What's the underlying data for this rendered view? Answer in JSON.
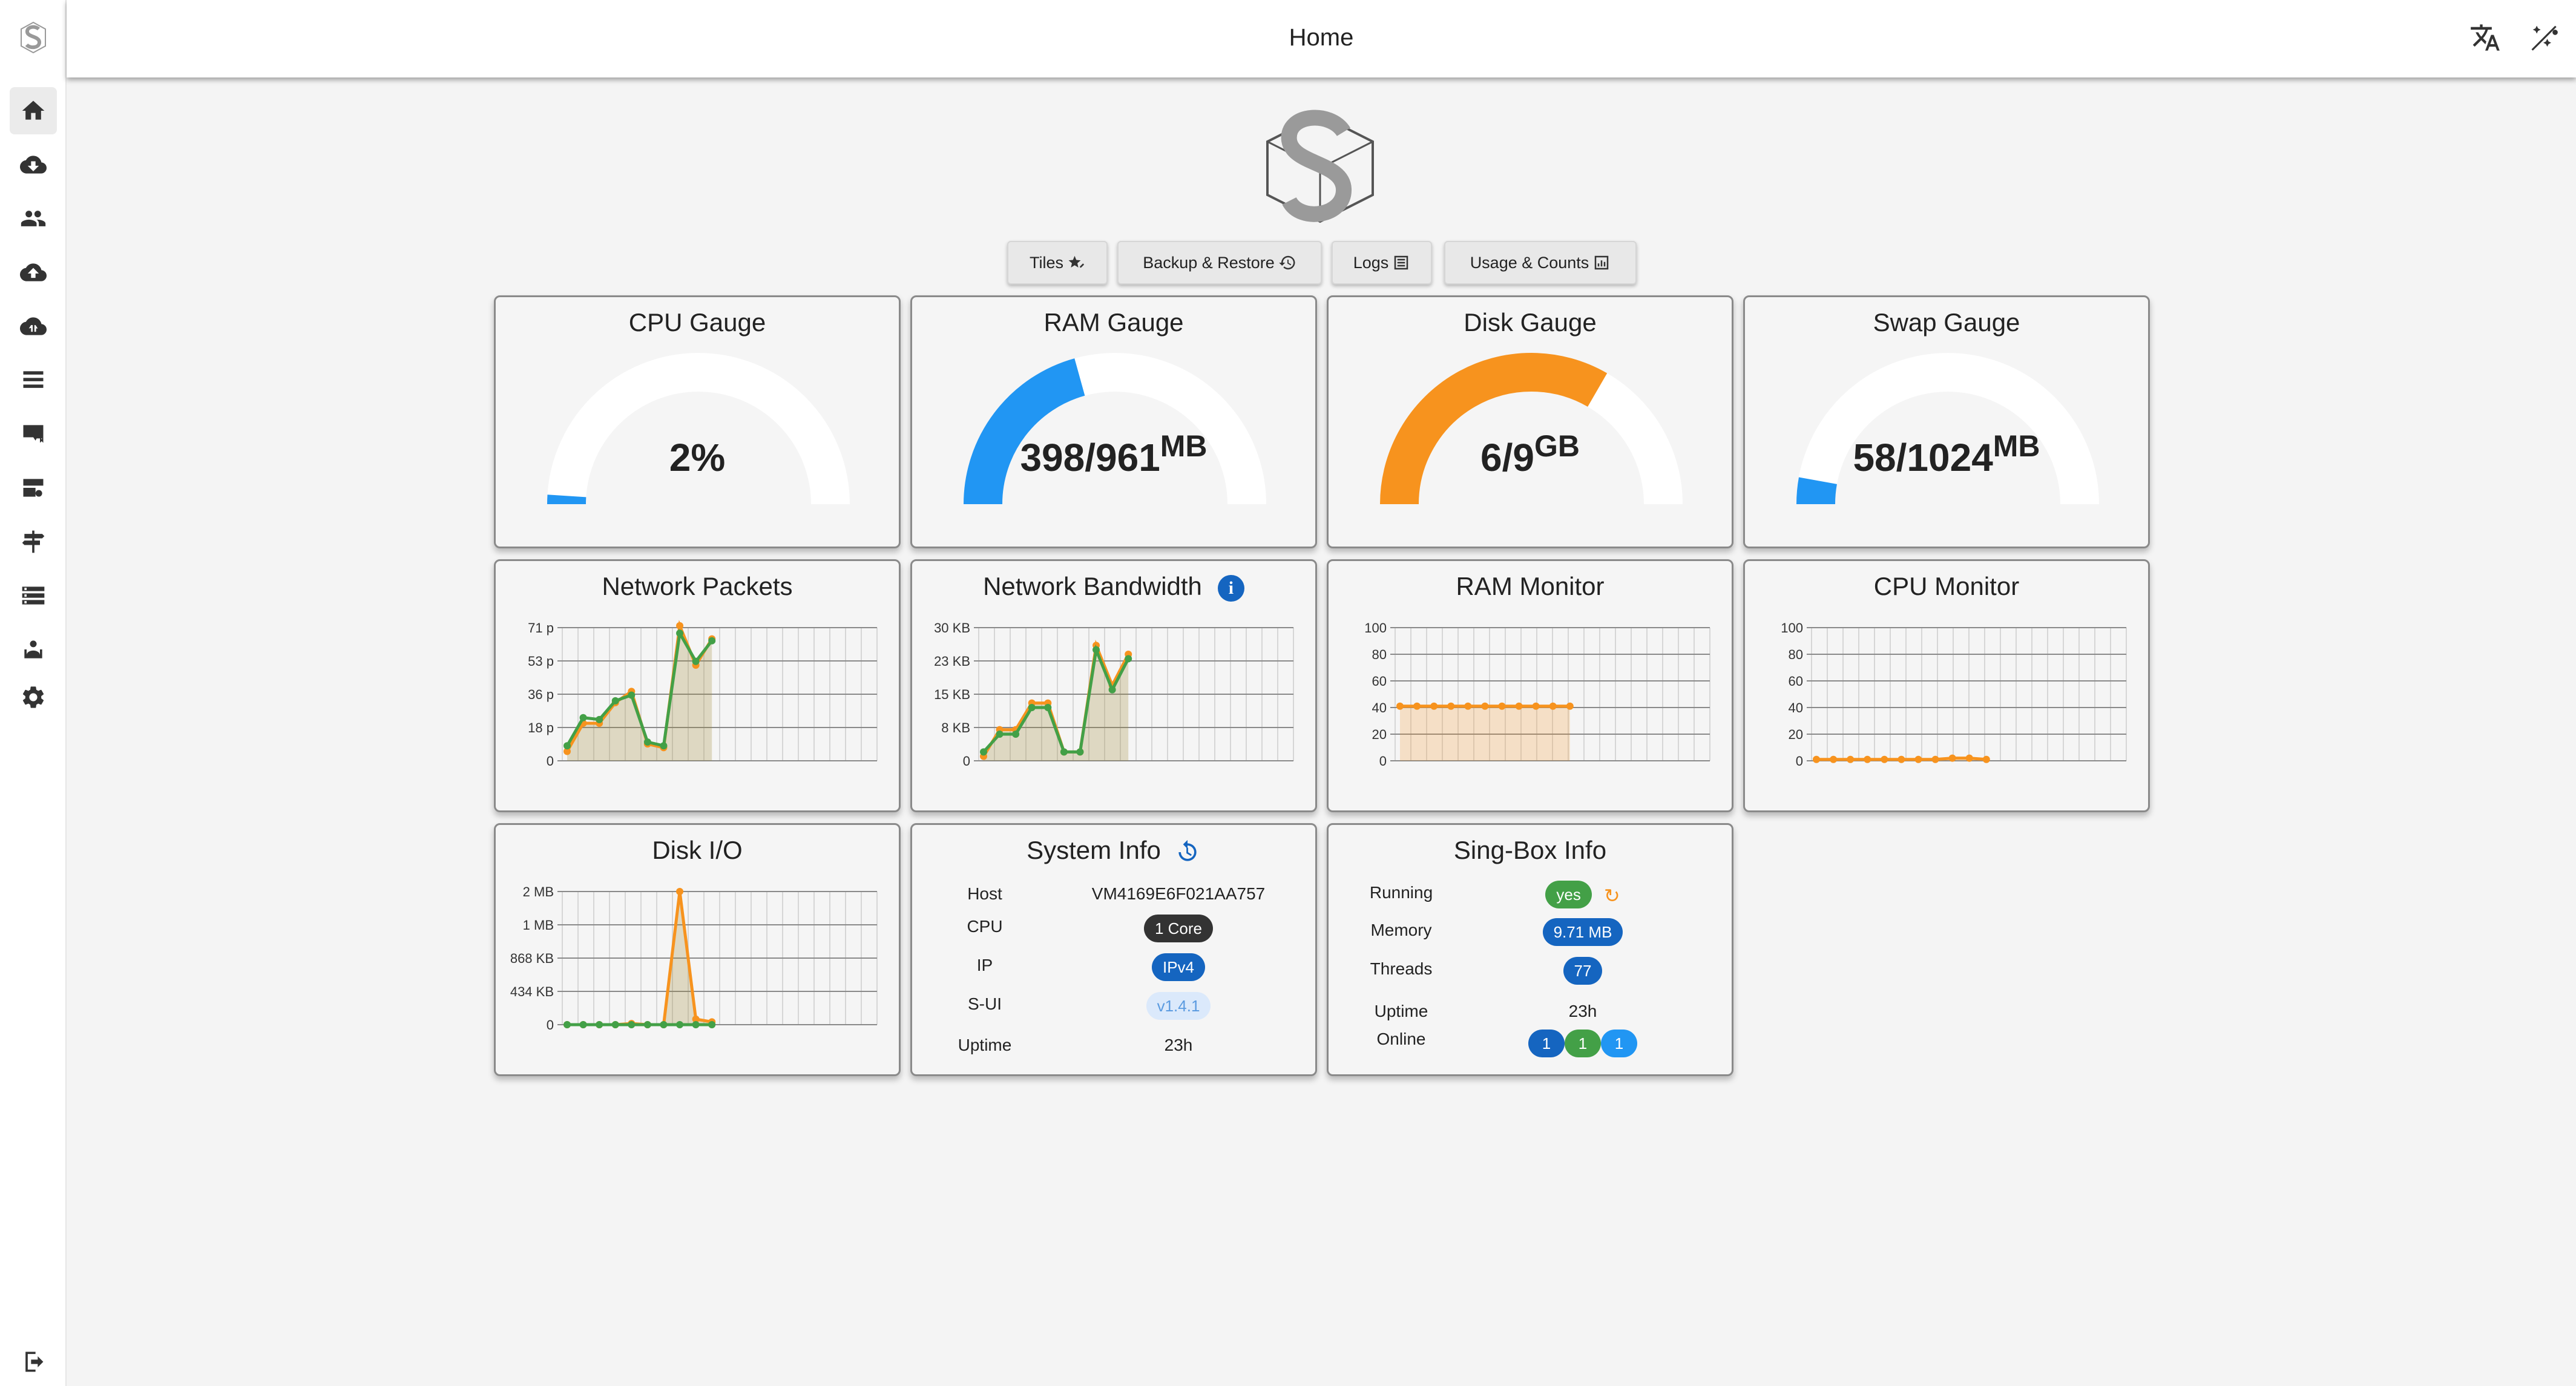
{
  "header": {
    "title": "Home"
  },
  "tabs": [
    {
      "label": "Tiles",
      "icon": "star-edit-icon"
    },
    {
      "label": "Backup & Restore",
      "icon": "history-icon"
    },
    {
      "label": "Logs",
      "icon": "list-icon"
    },
    {
      "label": "Usage & Counts",
      "icon": "bar-chart-icon"
    }
  ],
  "sidebar": {
    "items": [
      "home-icon",
      "inbound-icon",
      "clients-icon",
      "outbound-icon",
      "endpoints-icon",
      "services-icon",
      "tls-icon",
      "dns-icon",
      "rules-icon",
      "basics-icon",
      "admins-icon",
      "settings-icon"
    ],
    "logout": "logout-icon"
  },
  "gauges": [
    {
      "title": "CPU Gauge",
      "value": "2%",
      "unit": "",
      "fraction": 0.02,
      "color": "#2196f3"
    },
    {
      "title": "RAM Gauge",
      "value": "398/961",
      "unit": "MB",
      "fraction": 0.414,
      "color": "#2196f3"
    },
    {
      "title": "Disk Gauge",
      "value": "6/9",
      "unit": "GB",
      "fraction": 0.667,
      "color": "#f7931e"
    },
    {
      "title": "Swap Gauge",
      "value": "58/1024",
      "unit": "MB",
      "fraction": 0.057,
      "color": "#2196f3"
    }
  ],
  "charts": {
    "network_packets": {
      "title": "Network Packets",
      "yticks": [
        "71 p",
        "53 p",
        "36 p",
        "18 p",
        "0"
      ]
    },
    "network_bandwidth": {
      "title": "Network Bandwidth",
      "yticks": [
        "30 KB",
        "23 KB",
        "15 KB",
        "8 KB",
        "0"
      ]
    },
    "ram_monitor": {
      "title": "RAM Monitor",
      "yticks": [
        "100",
        "80",
        "60",
        "40",
        "20",
        "0"
      ]
    },
    "cpu_monitor": {
      "title": "CPU Monitor",
      "yticks": [
        "100",
        "80",
        "60",
        "40",
        "20",
        "0"
      ]
    },
    "disk_io": {
      "title": "Disk I/O",
      "yticks": [
        "2 MB",
        "1 MB",
        "868 KB",
        "434 KB",
        "0"
      ]
    }
  },
  "chart_data": [
    {
      "type": "line",
      "title": "Network Packets",
      "ylim": [
        0,
        71
      ],
      "series": [
        {
          "values": [
            5,
            20,
            20,
            31,
            37,
            9,
            7,
            72,
            51,
            65
          ]
        },
        {
          "values": [
            8,
            23,
            22,
            32,
            35,
            10,
            8,
            68,
            53,
            64
          ]
        }
      ]
    },
    {
      "type": "line",
      "title": "Network Bandwidth",
      "ylim": [
        0,
        30
      ],
      "series": [
        {
          "values": [
            1,
            7,
            7,
            13,
            13,
            2,
            2,
            26,
            17,
            24
          ]
        },
        {
          "values": [
            2,
            6,
            6,
            12,
            12,
            2,
            2,
            25,
            16,
            23
          ]
        }
      ]
    },
    {
      "type": "area",
      "title": "RAM Monitor",
      "ylim": [
        0,
        100
      ],
      "series": [
        {
          "values": [
            41,
            41,
            41,
            41,
            41,
            41,
            41,
            41,
            41,
            41,
            41
          ]
        }
      ]
    },
    {
      "type": "area",
      "title": "CPU Monitor",
      "ylim": [
        0,
        100
      ],
      "series": [
        {
          "values": [
            1,
            1,
            1,
            1,
            1,
            1,
            1,
            1,
            2,
            2,
            1
          ]
        }
      ]
    },
    {
      "type": "line",
      "title": "Disk I/O",
      "ylim": [
        0,
        2.4
      ],
      "series": [
        {
          "values": [
            0,
            0,
            0,
            0,
            0.02,
            0,
            0,
            2.4,
            0.1,
            0.05
          ]
        },
        {
          "values": [
            0,
            0,
            0,
            0,
            0,
            0,
            0,
            0,
            0,
            0
          ]
        }
      ]
    }
  ],
  "system_info": {
    "title": "System Info",
    "host_label": "Host",
    "host_value": "VM4169E6F021AA757",
    "cpu_label": "CPU",
    "cpu_value": "1 Core",
    "ip_label": "IP",
    "ip_value": "IPv4",
    "sui_label": "S-UI",
    "sui_value": "v1.4.1",
    "uptime_label": "Uptime",
    "uptime_value": "23h"
  },
  "singbox_info": {
    "title": "Sing-Box Info",
    "running_label": "Running",
    "running_value": "yes",
    "memory_label": "Memory",
    "memory_value": "9.71 MB",
    "threads_label": "Threads",
    "threads_value": "77",
    "uptime_label": "Uptime",
    "uptime_value": "23h",
    "online_label": "Online",
    "online_values": [
      "1",
      "1",
      "1"
    ]
  },
  "colors": {
    "orange": "#f7931e",
    "green": "#43a047",
    "blue": "#2196f3",
    "dark_blue": "#1565c0"
  }
}
